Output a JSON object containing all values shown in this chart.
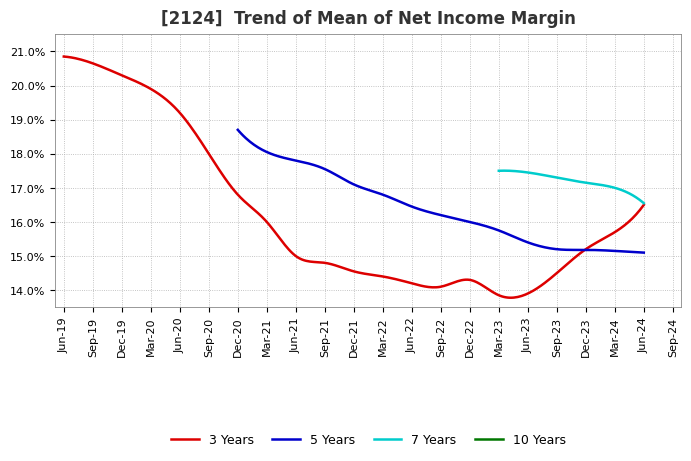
{
  "title": "[2124]  Trend of Mean of Net Income Margin",
  "background_color": "#ffffff",
  "plot_bg_color": "#ffffff",
  "grid_color": "#aaaaaa",
  "x_labels": [
    "Jun-19",
    "Sep-19",
    "Dec-19",
    "Mar-20",
    "Jun-20",
    "Sep-20",
    "Dec-20",
    "Mar-21",
    "Jun-21",
    "Sep-21",
    "Dec-21",
    "Mar-22",
    "Jun-22",
    "Sep-22",
    "Dec-22",
    "Mar-23",
    "Jun-23",
    "Sep-23",
    "Dec-23",
    "Mar-24",
    "Jun-24",
    "Sep-24"
  ],
  "ylim": [
    0.135,
    0.215
  ],
  "yticks": [
    0.14,
    0.15,
    0.16,
    0.17,
    0.18,
    0.19,
    0.2,
    0.21
  ],
  "series": [
    {
      "label": "3 Years",
      "color": "#dd0000",
      "linewidth": 1.8,
      "values": [
        0.2085,
        0.2065,
        0.203,
        0.199,
        0.192,
        0.18,
        0.168,
        0.16,
        0.15,
        0.148,
        0.1455,
        0.144,
        0.142,
        0.141,
        0.143,
        0.1385,
        0.139,
        0.145,
        0.152,
        0.157,
        0.165,
        null
      ]
    },
    {
      "label": "5 Years",
      "color": "#0000cc",
      "linewidth": 1.8,
      "values": [
        null,
        null,
        null,
        null,
        null,
        null,
        0.187,
        0.1805,
        0.178,
        0.1755,
        0.171,
        0.168,
        0.1645,
        0.162,
        0.16,
        0.1575,
        0.154,
        0.152,
        0.1518,
        0.1515,
        0.151,
        null
      ]
    },
    {
      "label": "7 Years",
      "color": "#00cccc",
      "linewidth": 1.8,
      "values": [
        null,
        null,
        null,
        null,
        null,
        null,
        null,
        null,
        null,
        null,
        null,
        null,
        null,
        null,
        null,
        0.175,
        0.1745,
        0.173,
        0.1715,
        0.17,
        0.1655,
        null
      ]
    },
    {
      "label": "10 Years",
      "color": "#007700",
      "linewidth": 1.8,
      "values": [
        null,
        null,
        null,
        null,
        null,
        null,
        null,
        null,
        null,
        null,
        null,
        null,
        null,
        null,
        null,
        null,
        null,
        null,
        null,
        null,
        null,
        null
      ]
    }
  ],
  "legend_fontsize": 9,
  "title_fontsize": 12,
  "tick_fontsize": 8
}
